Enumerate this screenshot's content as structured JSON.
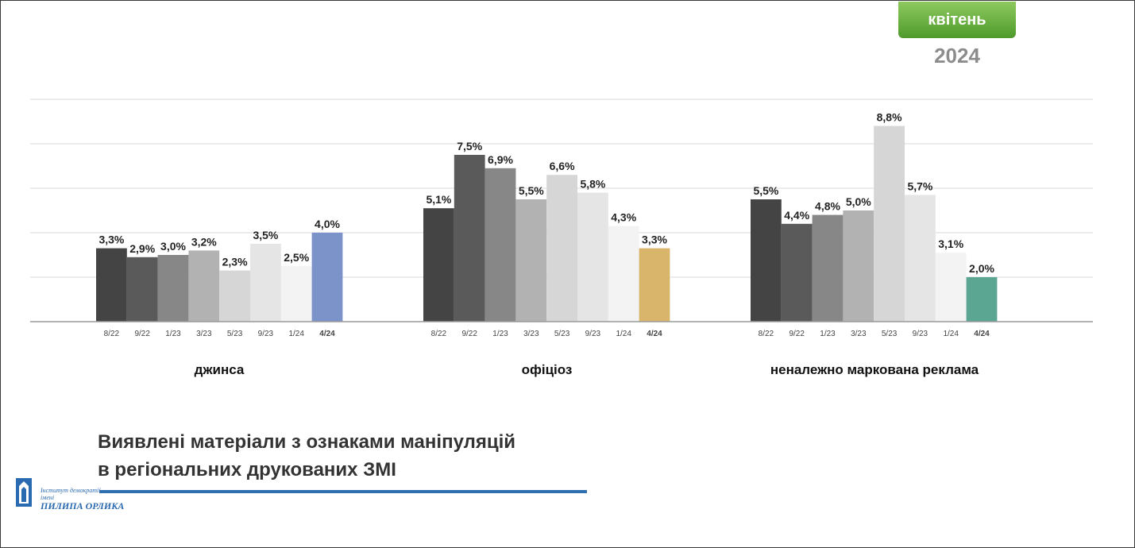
{
  "header": {
    "month": "квітень",
    "year": "2024"
  },
  "chart_data": {
    "type": "bar",
    "ylim": [
      0,
      10
    ],
    "grid": true,
    "panels": [
      {
        "title": "джинса",
        "categories": [
          "8/22",
          "9/22",
          "1/23",
          "3/23",
          "5/23",
          "9/23",
          "1/24",
          "4/24"
        ],
        "values": [
          3.3,
          2.9,
          3.0,
          3.2,
          2.3,
          3.5,
          2.5,
          4.0
        ],
        "labels": [
          "3,3%",
          "2,9%",
          "3,0%",
          "3,2%",
          "2,3%",
          "3,5%",
          "2,5%",
          "4,0%"
        ],
        "highlight_color": "#7b93c8"
      },
      {
        "title": "офіціоз",
        "categories": [
          "8/22",
          "9/22",
          "1/23",
          "3/23",
          "5/23",
          "9/23",
          "1/24",
          "4/24"
        ],
        "values": [
          5.1,
          7.5,
          6.9,
          5.5,
          6.6,
          5.8,
          4.3,
          3.3
        ],
        "labels": [
          "5,1%",
          "7,5%",
          "6,9%",
          "5,5%",
          "6,6%",
          "5,8%",
          "4,3%",
          "3,3%"
        ],
        "highlight_color": "#d9b56c"
      },
      {
        "title": "неналежно маркована реклама",
        "categories": [
          "8/22",
          "9/22",
          "1/23",
          "3/23",
          "5/23",
          "9/23",
          "1/24",
          "4/24"
        ],
        "values": [
          5.5,
          4.4,
          4.8,
          5.0,
          8.8,
          5.7,
          3.1,
          2.0
        ],
        "labels": [
          "5,5%",
          "4,4%",
          "4,8%",
          "5,0%",
          "8,8%",
          "5,7%",
          "3,1%",
          "2,0%"
        ],
        "highlight_color": "#5ba593"
      }
    ],
    "period_colors": [
      "#444444",
      "#5a5a5a",
      "#878787",
      "#b2b2b2",
      "#d6d6d6",
      "#e5e5e5",
      "#f3f3f3"
    ]
  },
  "footer": {
    "headline_line1": "Виявлені матеріали з ознаками маніпуляцій",
    "headline_line2": "в регіональних друкованих ЗМІ",
    "logo_line1": "Інститут демократії",
    "logo_line2": "імені",
    "logo_line3": "ПИЛИПА ОРЛИКА",
    "accent_color": "#2f6fb0"
  }
}
